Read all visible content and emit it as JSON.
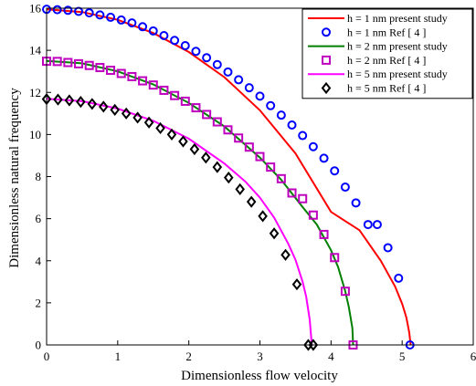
{
  "chart_data": {
    "type": "line",
    "xlabel": "Dimensionless flow velocity",
    "ylabel": "Dimensionless natural frequency",
    "xlim": [
      0,
      6
    ],
    "ylim": [
      0,
      16
    ],
    "xticks": [
      "0",
      "1",
      "2",
      "3",
      "4",
      "5",
      "6"
    ],
    "yticks": [
      "0",
      "2",
      "4",
      "6",
      "8",
      "10",
      "12",
      "14",
      "16"
    ],
    "grid": false,
    "legend_position": "top-right",
    "series": [
      {
        "name": "h = 1 nm present study",
        "kind": "line",
        "color": "#ff0000",
        "x": [
          0,
          0.5,
          1.0,
          1.5,
          2.0,
          2.5,
          3.0,
          3.5,
          4.0,
          4.4,
          4.7,
          4.9,
          5.0,
          5.06,
          5.1,
          5.12
        ],
        "y": [
          15.95,
          15.82,
          15.45,
          14.82,
          13.92,
          12.72,
          11.15,
          9.1,
          6.32,
          5.45,
          4.0,
          2.78,
          1.95,
          1.3,
          0.6,
          0
        ]
      },
      {
        "name": "h = 1 nm Ref [ 4 ]",
        "kind": "marker",
        "marker": "circle",
        "color": "#0000ff",
        "x": [
          0,
          0.15,
          0.3,
          0.45,
          0.6,
          0.75,
          0.9,
          1.05,
          1.2,
          1.35,
          1.5,
          1.65,
          1.8,
          1.95,
          2.1,
          2.25,
          2.4,
          2.55,
          2.7,
          2.85,
          3.0,
          3.15,
          3.3,
          3.45,
          3.6,
          3.75,
          3.9,
          4.05,
          4.2,
          4.35,
          4.52,
          4.65,
          4.8,
          4.95,
          5.11
        ],
        "y": [
          15.95,
          15.93,
          15.9,
          15.85,
          15.78,
          15.68,
          15.57,
          15.44,
          15.3,
          15.12,
          14.92,
          14.7,
          14.47,
          14.22,
          13.95,
          13.65,
          13.32,
          12.97,
          12.6,
          12.22,
          11.82,
          11.37,
          10.92,
          10.45,
          9.95,
          9.42,
          8.87,
          8.27,
          7.5,
          6.75,
          5.72,
          5.72,
          4.62,
          3.17,
          0
        ]
      },
      {
        "name": "h = 2 nm present study",
        "kind": "line",
        "color": "#007f00",
        "x": [
          0,
          0.5,
          1.0,
          1.5,
          2.0,
          2.5,
          3.0,
          3.3,
          3.6,
          3.8,
          4.0,
          4.1,
          4.2,
          4.25,
          4.3,
          4.31
        ],
        "y": [
          13.5,
          13.38,
          13.0,
          12.38,
          11.5,
          10.38,
          8.9,
          7.85,
          6.55,
          5.72,
          4.5,
          3.7,
          2.55,
          1.8,
          0.8,
          0
        ]
      },
      {
        "name": "h = 2 nm Ref [ 4 ]",
        "kind": "marker",
        "marker": "square",
        "color": "#bf00bf",
        "x": [
          0,
          0.15,
          0.3,
          0.45,
          0.6,
          0.75,
          0.9,
          1.05,
          1.2,
          1.35,
          1.5,
          1.65,
          1.8,
          1.95,
          2.1,
          2.25,
          2.4,
          2.55,
          2.7,
          2.85,
          3.0,
          3.15,
          3.3,
          3.45,
          3.6,
          3.75,
          3.9,
          4.05,
          4.2,
          4.31
        ],
        "y": [
          13.48,
          13.47,
          13.42,
          13.36,
          13.28,
          13.18,
          13.05,
          12.9,
          12.75,
          12.55,
          12.35,
          12.1,
          11.85,
          11.58,
          11.27,
          10.95,
          10.6,
          10.22,
          9.83,
          9.4,
          8.95,
          8.45,
          7.9,
          7.22,
          6.95,
          6.17,
          5.25,
          4.15,
          2.55,
          0
        ]
      },
      {
        "name": "h = 5 nm present study",
        "kind": "line",
        "color": "#ff00ff",
        "x": [
          0,
          0.5,
          1.0,
          1.5,
          2.0,
          2.5,
          2.8,
          3.0,
          3.2,
          3.4,
          3.5,
          3.6,
          3.65,
          3.7,
          3.73
        ],
        "y": [
          11.7,
          11.58,
          11.23,
          10.65,
          9.8,
          8.62,
          7.75,
          7.0,
          6.05,
          4.8,
          4.05,
          3.0,
          2.3,
          1.2,
          0
        ]
      },
      {
        "name": "h = 5 nm Ref [ 4 ]",
        "kind": "marker",
        "marker": "diamond",
        "color": "#000000",
        "x": [
          0,
          0.16,
          0.32,
          0.48,
          0.64,
          0.8,
          0.96,
          1.12,
          1.28,
          1.44,
          1.6,
          1.76,
          1.92,
          2.08,
          2.24,
          2.4,
          2.56,
          2.72,
          2.88,
          3.04,
          3.2,
          3.36,
          3.52,
          3.68,
          3.75
        ],
        "y": [
          11.68,
          11.66,
          11.62,
          11.55,
          11.45,
          11.32,
          11.17,
          11.0,
          10.8,
          10.57,
          10.3,
          10.0,
          9.67,
          9.3,
          8.9,
          8.45,
          7.95,
          7.4,
          6.8,
          6.12,
          5.3,
          4.28,
          2.88,
          0,
          0
        ]
      }
    ]
  }
}
